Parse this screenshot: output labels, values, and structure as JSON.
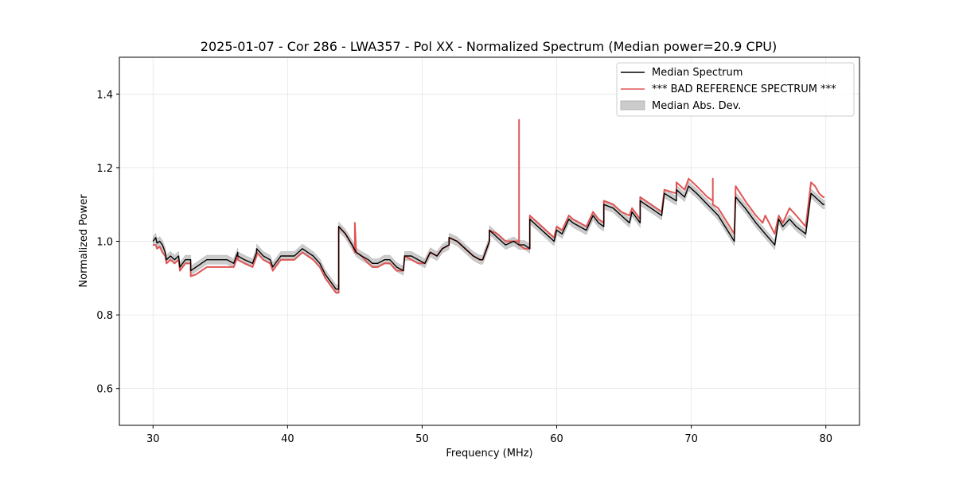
{
  "chart_data": {
    "type": "line",
    "title": "2025-01-07 - Cor 286 - LWA357 - Pol XX - Normalized Spectrum (Median power=20.9 CPU)",
    "xlabel": "Frequency (MHz)",
    "ylabel": "Normalized Power",
    "xlim": [
      27.5,
      82.5
    ],
    "ylim": [
      0.5,
      1.5
    ],
    "xticks": [
      30,
      40,
      50,
      60,
      70,
      80
    ],
    "yticks": [
      0.6,
      0.8,
      1.0,
      1.2,
      1.4
    ],
    "xtick_labels": [
      "30",
      "40",
      "50",
      "60",
      "70",
      "80"
    ],
    "ytick_labels": [
      "0.6",
      "0.8",
      "1.0",
      "1.2",
      "1.4"
    ],
    "grid": true,
    "legend_position": "top-right",
    "legend": [
      "Median Spectrum",
      "*** BAD REFERENCE SPECTRUM ***",
      "Median Abs. Dev."
    ],
    "series": [
      {
        "name": "Median Spectrum",
        "color": "#000000",
        "x": [
          30.0,
          30.2,
          30.3,
          30.5,
          30.7,
          30.9,
          31.0,
          31.3,
          31.6,
          31.9,
          32.0,
          32.4,
          32.8,
          32.8,
          33.2,
          33.6,
          34.0,
          34.5,
          35.0,
          35.5,
          36.0,
          36.3,
          36.3,
          36.8,
          37.4,
          37.7,
          37.7,
          38.2,
          38.7,
          38.9,
          39.5,
          40.0,
          40.5,
          40.8,
          41.1,
          41.5,
          41.9,
          42.4,
          42.8,
          43.2,
          43.6,
          43.8,
          43.8,
          44.3,
          44.8,
          45.1,
          45.5,
          46.0,
          46.3,
          46.7,
          47.2,
          47.6,
          48.1,
          48.6,
          48.7,
          49.2,
          49.7,
          50.2,
          50.6,
          51.1,
          51.5,
          52.0,
          52.0,
          52.6,
          53.2,
          53.8,
          54.3,
          54.5,
          55.0,
          55.0,
          55.6,
          56.2,
          56.8,
          57.2,
          57.6,
          58.0,
          58.0,
          58.6,
          59.2,
          59.8,
          60.0,
          60.4,
          60.9,
          61.2,
          61.7,
          62.2,
          62.7,
          63.1,
          63.5,
          63.5,
          64.2,
          64.8,
          65.4,
          65.6,
          66.2,
          66.2,
          67.0,
          67.8,
          68.0,
          68.9,
          68.9,
          69.5,
          69.8,
          70.4,
          71.2,
          72.0,
          73.2,
          73.3,
          74.0,
          74.8,
          75.5,
          76.2,
          76.5,
          76.8,
          77.3,
          77.8,
          78.5,
          78.9,
          79.2,
          79.5,
          79.8,
          79.9
        ],
        "y": [
          1.0,
          1.01,
          0.995,
          1.0,
          0.99,
          0.97,
          0.95,
          0.96,
          0.95,
          0.96,
          0.93,
          0.95,
          0.95,
          0.92,
          0.93,
          0.94,
          0.95,
          0.95,
          0.95,
          0.95,
          0.94,
          0.97,
          0.96,
          0.95,
          0.94,
          0.97,
          0.98,
          0.96,
          0.95,
          0.93,
          0.96,
          0.96,
          0.96,
          0.97,
          0.98,
          0.97,
          0.96,
          0.94,
          0.91,
          0.89,
          0.87,
          0.87,
          1.04,
          1.02,
          0.99,
          0.97,
          0.96,
          0.95,
          0.94,
          0.94,
          0.95,
          0.95,
          0.93,
          0.92,
          0.96,
          0.96,
          0.95,
          0.94,
          0.97,
          0.96,
          0.98,
          0.99,
          1.01,
          1.0,
          0.98,
          0.96,
          0.95,
          0.95,
          1.0,
          1.03,
          1.01,
          0.99,
          1.0,
          0.99,
          0.99,
          0.98,
          1.06,
          1.04,
          1.02,
          1.0,
          1.03,
          1.02,
          1.06,
          1.05,
          1.04,
          1.03,
          1.07,
          1.05,
          1.04,
          1.1,
          1.09,
          1.07,
          1.05,
          1.08,
          1.05,
          1.11,
          1.09,
          1.07,
          1.13,
          1.11,
          1.14,
          1.12,
          1.15,
          1.13,
          1.1,
          1.07,
          1.0,
          1.12,
          1.09,
          1.05,
          1.02,
          0.99,
          1.06,
          1.04,
          1.06,
          1.04,
          1.02,
          1.13,
          1.12,
          1.11,
          1.1,
          1.1
        ]
      },
      {
        "name": "*** BAD REFERENCE SPECTRUM ***",
        "color": "#e05555",
        "x": [
          30.0,
          30.2,
          30.3,
          30.5,
          30.7,
          30.9,
          31.0,
          31.3,
          31.6,
          31.9,
          32.0,
          32.4,
          32.8,
          32.8,
          33.2,
          33.6,
          34.0,
          34.5,
          35.0,
          35.5,
          36.0,
          36.3,
          36.3,
          36.8,
          37.4,
          37.7,
          37.7,
          38.2,
          38.7,
          38.9,
          39.5,
          40.0,
          40.5,
          40.8,
          41.1,
          41.5,
          41.9,
          42.4,
          42.8,
          43.2,
          43.6,
          43.8,
          43.8,
          44.3,
          44.8,
          45.0,
          45.0,
          45.1,
          45.5,
          46.0,
          46.3,
          46.7,
          47.2,
          47.6,
          48.1,
          48.6,
          48.7,
          49.2,
          49.7,
          50.2,
          50.6,
          51.1,
          51.5,
          52.0,
          52.0,
          52.6,
          53.2,
          53.8,
          54.3,
          54.5,
          55.0,
          55.0,
          55.6,
          56.2,
          56.8,
          57.2,
          57.2,
          57.2,
          57.6,
          58.0,
          58.0,
          58.6,
          59.2,
          59.8,
          60.0,
          60.4,
          60.9,
          61.2,
          61.7,
          62.2,
          62.7,
          63.1,
          63.5,
          63.5,
          64.2,
          64.8,
          65.4,
          65.6,
          66.2,
          66.2,
          67.0,
          67.8,
          68.0,
          68.9,
          68.9,
          69.5,
          69.8,
          70.4,
          71.2,
          71.6,
          71.6,
          71.6,
          72.0,
          73.2,
          73.3,
          74.0,
          74.8,
          75.3,
          75.5,
          76.2,
          76.5,
          76.8,
          77.3,
          77.8,
          78.5,
          78.9,
          79.2,
          79.5,
          79.8,
          79.9
        ],
        "y": [
          0.99,
          0.99,
          0.98,
          0.985,
          0.97,
          0.96,
          0.94,
          0.95,
          0.94,
          0.95,
          0.92,
          0.94,
          0.94,
          0.905,
          0.91,
          0.92,
          0.93,
          0.93,
          0.93,
          0.93,
          0.93,
          0.96,
          0.95,
          0.94,
          0.93,
          0.96,
          0.97,
          0.95,
          0.94,
          0.92,
          0.95,
          0.95,
          0.95,
          0.96,
          0.97,
          0.96,
          0.95,
          0.93,
          0.9,
          0.88,
          0.86,
          0.86,
          1.04,
          1.02,
          0.99,
          0.97,
          1.05,
          0.97,
          0.96,
          0.94,
          0.93,
          0.93,
          0.94,
          0.94,
          0.92,
          0.92,
          0.96,
          0.95,
          0.94,
          0.94,
          0.97,
          0.96,
          0.98,
          0.99,
          1.01,
          1.0,
          0.98,
          0.96,
          0.95,
          0.95,
          1.0,
          1.03,
          1.02,
          1.0,
          1.0,
          1.0,
          1.33,
          0.99,
          0.98,
          0.98,
          1.07,
          1.05,
          1.03,
          1.01,
          1.04,
          1.03,
          1.07,
          1.06,
          1.05,
          1.04,
          1.08,
          1.06,
          1.05,
          1.11,
          1.1,
          1.08,
          1.07,
          1.09,
          1.06,
          1.12,
          1.1,
          1.08,
          1.14,
          1.13,
          1.16,
          1.14,
          1.17,
          1.15,
          1.12,
          1.11,
          1.17,
          1.1,
          1.09,
          1.02,
          1.15,
          1.11,
          1.07,
          1.05,
          1.07,
          1.02,
          1.07,
          1.05,
          1.09,
          1.07,
          1.04,
          1.16,
          1.15,
          1.13,
          1.12,
          1.12
        ]
      }
    ],
    "band": {
      "name": "Median Abs. Dev.",
      "color": "#cccccc",
      "half_width": 0.012
    }
  }
}
